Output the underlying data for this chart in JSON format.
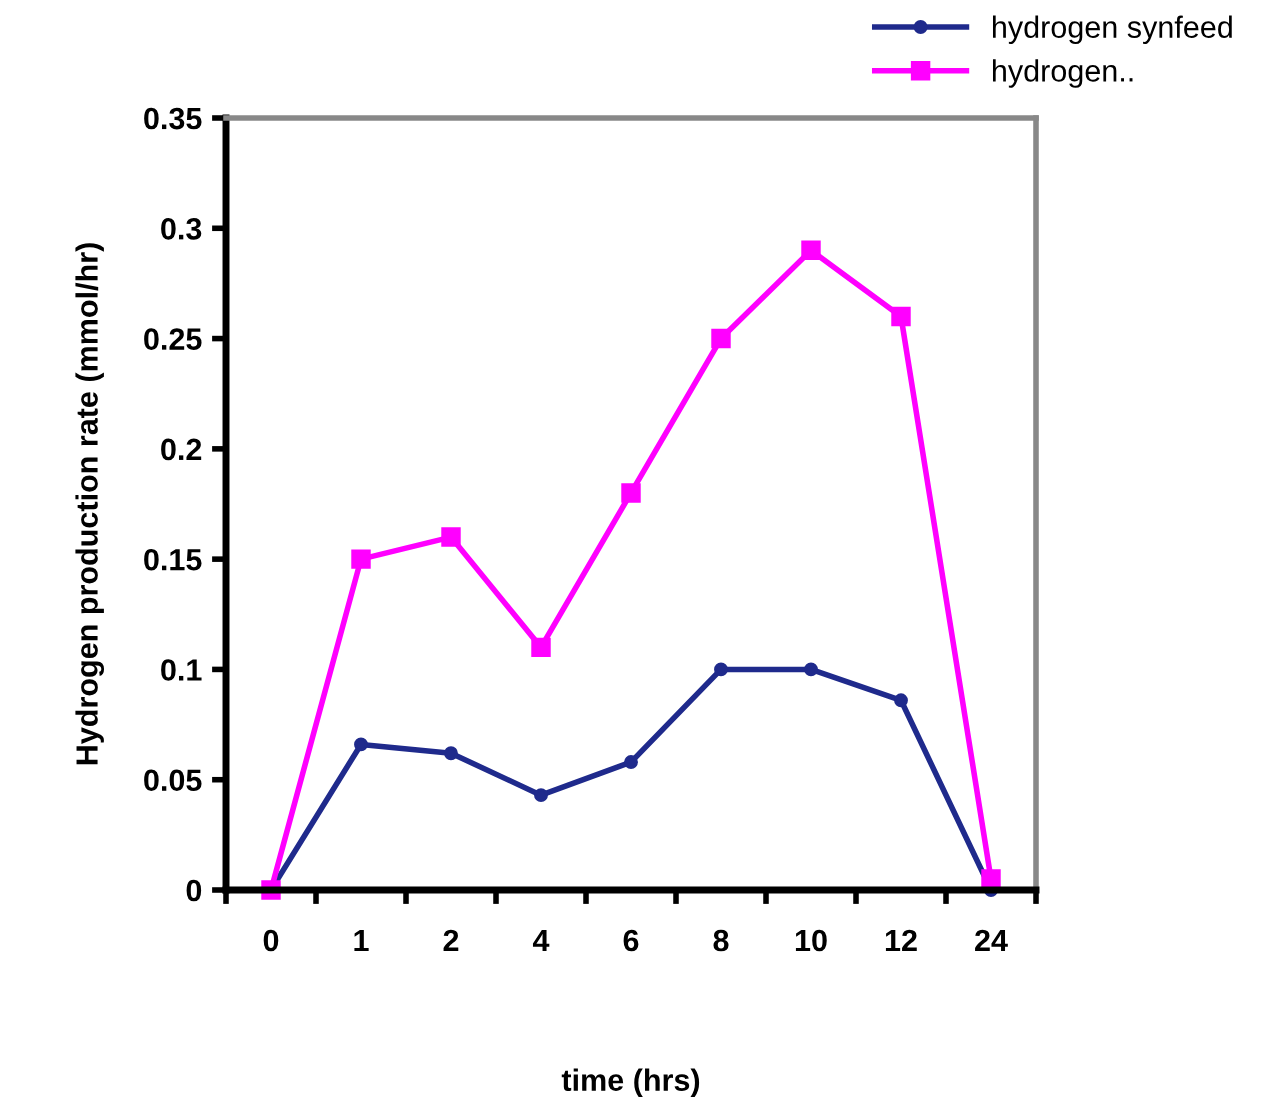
{
  "chart_data": {
    "type": "line",
    "xlabel": "time (hrs)",
    "ylabel": "Hydrogen production rate (mmol/hr)",
    "categories": [
      "0",
      "1",
      "2",
      "4",
      "6",
      "8",
      "10",
      "12",
      "24"
    ],
    "ylim": [
      0,
      0.35
    ],
    "yticks": [
      0,
      0.05,
      0.1,
      0.15,
      0.2,
      0.25,
      0.3,
      0.35
    ],
    "legend": "top right",
    "grid": false,
    "series": [
      {
        "name": "hydrogen synfeed",
        "color": "#1f2a8c",
        "marker": "circle",
        "values": [
          0,
          0.066,
          0.062,
          0.043,
          0.058,
          0.1,
          0.1,
          0.086,
          0
        ]
      },
      {
        "name": "hydrogen..",
        "color": "#ff00ff",
        "marker": "square",
        "values": [
          0,
          0.15,
          0.16,
          0.11,
          0.18,
          0.25,
          0.29,
          0.26,
          0.005
        ]
      }
    ]
  }
}
